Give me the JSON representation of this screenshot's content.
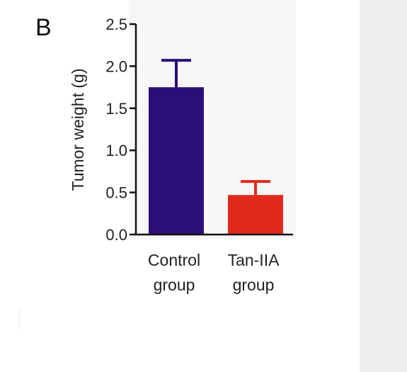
{
  "panel_label": "B",
  "chart_data": {
    "type": "bar",
    "categories": [
      [
        "Control",
        "group"
      ],
      [
        "Tan-IIA",
        "group"
      ]
    ],
    "values": [
      1.75,
      0.47
    ],
    "errors": [
      0.32,
      0.16
    ],
    "colors": [
      "#2b0f78",
      "#e02b1c"
    ],
    "ylabel": "Tumor weight (g)",
    "ylim": [
      0,
      2.5
    ],
    "yticks": [
      "0.0",
      "0.5",
      "1.0",
      "1.5",
      "2.0",
      "2.5"
    ],
    "ytick_values": [
      0,
      0.5,
      1.0,
      1.5,
      2.0,
      2.5
    ],
    "grid": false,
    "legend": "none"
  },
  "colors": {
    "axis": "#111111",
    "plot_bg": "#f7f7f7",
    "side_strip": "#efefef"
  }
}
